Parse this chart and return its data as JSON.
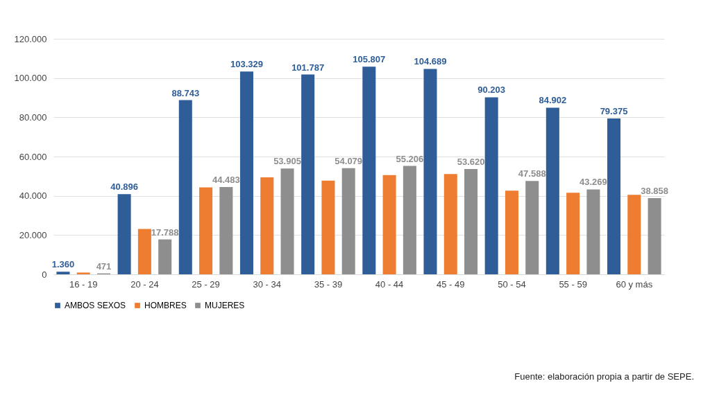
{
  "chart_data": {
    "type": "bar",
    "categories": [
      "16 - 19",
      "20 - 24",
      "25 - 29",
      "30 - 34",
      "35 - 39",
      "40 - 44",
      "45 - 49",
      "50 - 54",
      "55 - 59",
      "60 y más"
    ],
    "series": [
      {
        "name": "AMBOS SEXOS",
        "color": "#2f5d98",
        "values": [
          1360,
          40896,
          88743,
          103329,
          101787,
          105807,
          104689,
          90203,
          84902,
          79375
        ],
        "value_labels": [
          "1.360",
          "40.896",
          "88.743",
          "103.329",
          "101.787",
          "105.807",
          "104.689",
          "90.203",
          "84.902",
          "79.375"
        ]
      },
      {
        "name": "HOMBRES",
        "color": "#ee7d31",
        "values": [
          900,
          23100,
          44300,
          49400,
          47700,
          50600,
          51100,
          42600,
          41600,
          40500
        ]
      },
      {
        "name": "MUJERES",
        "color": "#8e8e8e",
        "values": [
          471,
          17788,
          44483,
          53905,
          54079,
          55206,
          53620,
          47588,
          43269,
          38858
        ],
        "value_labels": [
          "471",
          "17.788",
          "44.483",
          "53.905",
          "54.079",
          "55.206",
          "53.620",
          "47.588",
          "43.269",
          "38.858"
        ]
      }
    ],
    "ylim": [
      0,
      120000
    ],
    "yticks": [
      0,
      {
        "value": 20000,
        "label": "20.000"
      },
      {
        "value": 40000,
        "label": "40.000"
      },
      {
        "value": 60000,
        "label": "60.000"
      },
      {
        "value": 80000,
        "label": "80.000"
      },
      {
        "value": 100000,
        "label": "100.000"
      },
      {
        "value": 120000,
        "label": "120.000"
      }
    ],
    "grid": "y",
    "legend": "bottom",
    "annotations": [
      "Fuente: elaboración propia a partir de SEPE."
    ]
  }
}
